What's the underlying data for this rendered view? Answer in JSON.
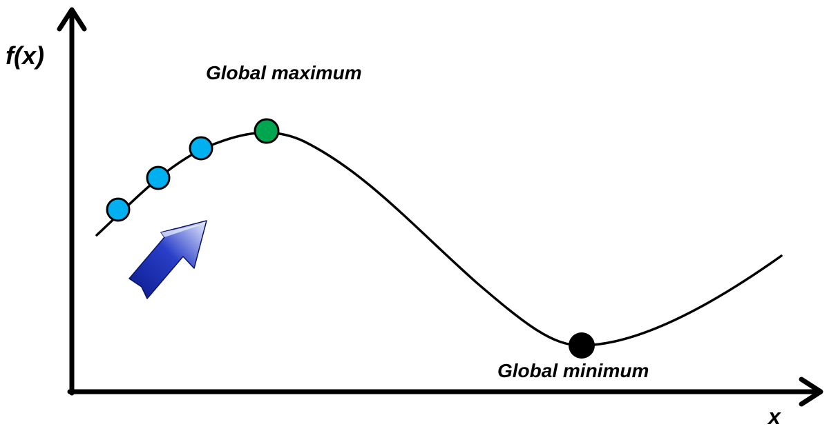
{
  "labels": {
    "y_axis": "f(x)",
    "x_axis": "x",
    "global_maximum": "Global maximum",
    "global_minimum": "Global minimum"
  },
  "colors": {
    "axis": "#000000",
    "curve": "#000000",
    "step_point": "#00B0F0",
    "maximum_point": "#00A550",
    "minimum_point": "#000000",
    "arrow_dark": "#0A1A8C",
    "arrow_light": "#E8EEFF"
  },
  "icons": {
    "direction_arrow": "arrow-up-right-icon"
  },
  "step_point_count": 3
}
